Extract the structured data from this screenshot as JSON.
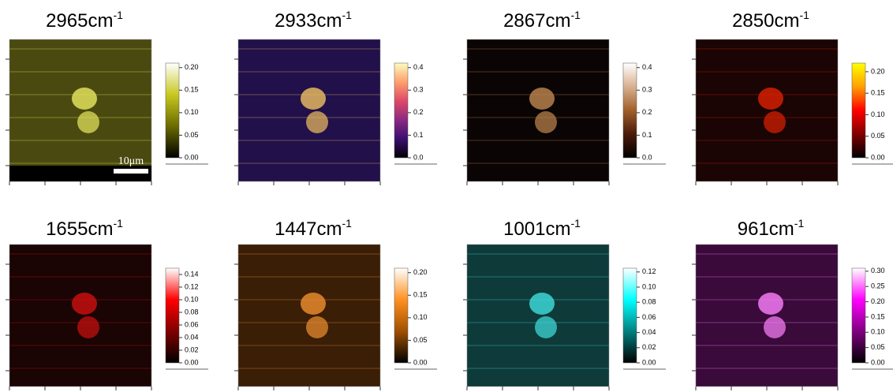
{
  "panels": [
    {
      "title": "2965cm",
      "title_exp": "-1",
      "scale_bar": "10μm",
      "image_color": "#4a4a10",
      "feature_color": "#e8e860",
      "colors": [
        "#000000",
        "#6b6b00",
        "#c8c820",
        "#ffffff"
      ],
      "clim": [
        0,
        0.21
      ],
      "ticks": [
        {
          "value": 0,
          "label": "0.00"
        },
        {
          "value": 0.05,
          "label": "0.05"
        },
        {
          "value": 0.1,
          "label": "0.10"
        },
        {
          "value": 0.15,
          "label": "0.15"
        },
        {
          "value": 0.2,
          "label": "0.20"
        }
      ]
    },
    {
      "title": "2933cm",
      "title_exp": "-1",
      "image_color": "#22104a",
      "feature_color": "#f0c060",
      "colors": [
        "#000004",
        "#3b0f70",
        "#8c2981",
        "#de4968",
        "#fe9f6d",
        "#fcfdbf"
      ],
      "clim": [
        0,
        0.42
      ],
      "ticks": [
        {
          "value": 0,
          "label": "0.0"
        },
        0.1,
        0.2,
        0.3,
        0.4
      ]
    },
    {
      "title": "2867cm",
      "title_exp": "-1",
      "image_color": "#0a0404",
      "feature_color": "#c08850",
      "colors": [
        "#000000",
        "#4a1a0a",
        "#a0602a",
        "#d8b090",
        "#ffffff"
      ],
      "clim": [
        0,
        0.42
      ],
      "ticks": [
        {
          "value": 0,
          "label": "0.0"
        },
        0.1,
        0.2,
        0.3,
        0.4
      ]
    },
    {
      "title": "2850cm",
      "title_exp": "-1",
      "image_color": "#1a0404",
      "feature_color": "#e02000",
      "colors": [
        "#000000",
        "#800000",
        "#ff0000",
        "#ffa000",
        "#ffff00"
      ],
      "clim": [
        0,
        0.22
      ],
      "ticks": [
        {
          "value": 0,
          "label": "0.00"
        },
        {
          "value": 0.05,
          "label": "0.05"
        },
        {
          "value": 0.1,
          "label": "0.10"
        },
        {
          "value": 0.15,
          "label": "0.15"
        },
        {
          "value": 0.2,
          "label": "0.20"
        }
      ]
    },
    {
      "title": "1655cm",
      "title_exp": "-1",
      "image_color": "#1a0404",
      "feature_color": "#d01010",
      "colors": [
        "#000000",
        "#800000",
        "#ff0000",
        "#ffffff"
      ],
      "clim": [
        0,
        0.15
      ],
      "ticks": [
        {
          "value": 0,
          "label": "0.00"
        },
        {
          "value": 0.02,
          "label": "0.02"
        },
        {
          "value": 0.04,
          "label": "0.04"
        },
        {
          "value": 0.06,
          "label": "0.06"
        },
        {
          "value": 0.08,
          "label": "0.08"
        },
        {
          "value": 0.1,
          "label": "0.10"
        },
        {
          "value": 0.12,
          "label": "0.12"
        },
        {
          "value": 0.14,
          "label": "0.14"
        }
      ]
    },
    {
      "title": "1447cm",
      "title_exp": "-1",
      "image_color": "#3a1e06",
      "feature_color": "#f09030",
      "colors": [
        "#000000",
        "#a05000",
        "#ff9020",
        "#ffffff"
      ],
      "clim": [
        0,
        0.21
      ],
      "ticks": [
        {
          "value": 0,
          "label": "0.00"
        },
        {
          "value": 0.05,
          "label": "0.05"
        },
        {
          "value": 0.1,
          "label": "0.10"
        },
        {
          "value": 0.15,
          "label": "0.15"
        },
        {
          "value": 0.2,
          "label": "0.20"
        }
      ]
    },
    {
      "title": "1001cm",
      "title_exp": "-1",
      "image_color": "#0e3a3a",
      "feature_color": "#40e0e0",
      "colors": [
        "#000000",
        "#008080",
        "#00ffff",
        "#ffffff"
      ],
      "clim": [
        0,
        0.125
      ],
      "ticks": [
        {
          "value": 0,
          "label": "0.00"
        },
        {
          "value": 0.02,
          "label": "0.02"
        },
        {
          "value": 0.04,
          "label": "0.04"
        },
        {
          "value": 0.06,
          "label": "0.06"
        },
        {
          "value": 0.08,
          "label": "0.08"
        },
        {
          "value": 0.1,
          "label": "0.10"
        },
        {
          "value": 0.12,
          "label": "0.12"
        }
      ]
    },
    {
      "title": "961cm",
      "title_exp": "-1",
      "image_color": "#3a0a3a",
      "feature_color": "#ff80ff",
      "colors": [
        "#000000",
        "#800080",
        "#ff00ff",
        "#ffffff"
      ],
      "clim": [
        0,
        0.31
      ],
      "ticks": [
        {
          "value": 0,
          "label": "0.00"
        },
        {
          "value": 0.05,
          "label": "0.05"
        },
        {
          "value": 0.1,
          "label": "0.10"
        },
        {
          "value": 0.15,
          "label": "0.15"
        },
        {
          "value": 0.2,
          "label": "0.20"
        },
        {
          "value": 0.25,
          "label": "0.25"
        },
        {
          "value": 0.3,
          "label": "0.30"
        }
      ]
    }
  ]
}
